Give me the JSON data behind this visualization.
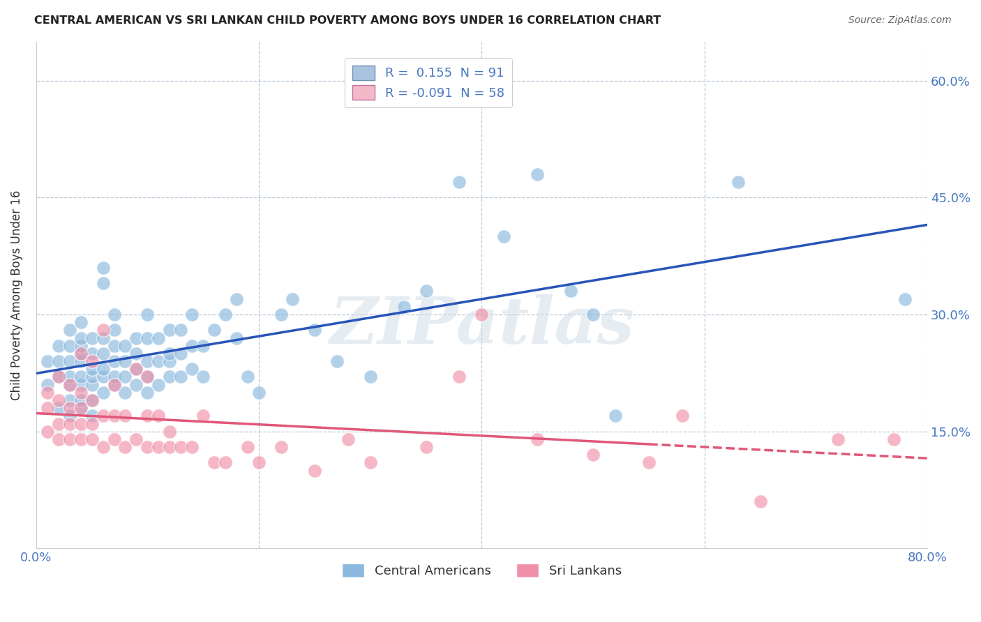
{
  "title": "CENTRAL AMERICAN VS SRI LANKAN CHILD POVERTY AMONG BOYS UNDER 16 CORRELATION CHART",
  "source": "Source: ZipAtlas.com",
  "ylabel": "Child Poverty Among Boys Under 16",
  "yticks": [
    "15.0%",
    "30.0%",
    "45.0%",
    "60.0%"
  ],
  "ytick_vals": [
    0.15,
    0.3,
    0.45,
    0.6
  ],
  "xmin": 0.0,
  "xmax": 0.8,
  "ymin": 0.0,
  "ymax": 0.65,
  "legend1_label": "R =  0.155  N = 91",
  "legend2_label": "R = -0.091  N = 58",
  "legend_box_color": "#aac4e0",
  "legend_pink_color": "#f4b8c8",
  "dot_color_blue": "#8ab8de",
  "dot_color_pink": "#f090a8",
  "line_color_blue": "#2855b8",
  "line_color_pink": "#e05878",
  "bottom_legend_blue": "Central Americans",
  "bottom_legend_pink": "Sri Lankans",
  "watermark": "ZIPatlas",
  "grid_color": "#b8c8d8",
  "background_color": "#ffffff",
  "title_color": "#222222",
  "axis_label_color": "#4878c0",
  "ca_x": [
    0.01,
    0.01,
    0.02,
    0.02,
    0.02,
    0.02,
    0.03,
    0.03,
    0.03,
    0.03,
    0.03,
    0.03,
    0.03,
    0.04,
    0.04,
    0.04,
    0.04,
    0.04,
    0.04,
    0.04,
    0.04,
    0.04,
    0.05,
    0.05,
    0.05,
    0.05,
    0.05,
    0.05,
    0.05,
    0.06,
    0.06,
    0.06,
    0.06,
    0.06,
    0.06,
    0.06,
    0.07,
    0.07,
    0.07,
    0.07,
    0.07,
    0.07,
    0.08,
    0.08,
    0.08,
    0.08,
    0.09,
    0.09,
    0.09,
    0.09,
    0.1,
    0.1,
    0.1,
    0.1,
    0.1,
    0.11,
    0.11,
    0.11,
    0.12,
    0.12,
    0.12,
    0.12,
    0.13,
    0.13,
    0.13,
    0.14,
    0.14,
    0.14,
    0.15,
    0.15,
    0.16,
    0.17,
    0.18,
    0.18,
    0.19,
    0.2,
    0.22,
    0.23,
    0.25,
    0.27,
    0.3,
    0.33,
    0.35,
    0.38,
    0.42,
    0.45,
    0.48,
    0.5,
    0.52,
    0.63,
    0.78
  ],
  "ca_y": [
    0.21,
    0.24,
    0.18,
    0.22,
    0.24,
    0.26,
    0.17,
    0.19,
    0.21,
    0.22,
    0.24,
    0.26,
    0.28,
    0.18,
    0.19,
    0.21,
    0.22,
    0.24,
    0.25,
    0.26,
    0.27,
    0.29,
    0.17,
    0.19,
    0.21,
    0.22,
    0.23,
    0.25,
    0.27,
    0.2,
    0.22,
    0.23,
    0.25,
    0.27,
    0.34,
    0.36,
    0.21,
    0.22,
    0.24,
    0.26,
    0.28,
    0.3,
    0.2,
    0.22,
    0.24,
    0.26,
    0.21,
    0.23,
    0.25,
    0.27,
    0.2,
    0.22,
    0.24,
    0.27,
    0.3,
    0.21,
    0.24,
    0.27,
    0.22,
    0.24,
    0.25,
    0.28,
    0.22,
    0.25,
    0.28,
    0.23,
    0.26,
    0.3,
    0.22,
    0.26,
    0.28,
    0.3,
    0.27,
    0.32,
    0.22,
    0.2,
    0.3,
    0.32,
    0.28,
    0.24,
    0.22,
    0.31,
    0.33,
    0.47,
    0.4,
    0.48,
    0.33,
    0.3,
    0.17,
    0.47,
    0.32
  ],
  "sl_x": [
    0.01,
    0.01,
    0.01,
    0.02,
    0.02,
    0.02,
    0.02,
    0.03,
    0.03,
    0.03,
    0.03,
    0.04,
    0.04,
    0.04,
    0.04,
    0.04,
    0.05,
    0.05,
    0.05,
    0.05,
    0.06,
    0.06,
    0.06,
    0.07,
    0.07,
    0.07,
    0.08,
    0.08,
    0.09,
    0.09,
    0.1,
    0.1,
    0.1,
    0.11,
    0.11,
    0.12,
    0.12,
    0.13,
    0.14,
    0.15,
    0.16,
    0.17,
    0.19,
    0.2,
    0.22,
    0.25,
    0.28,
    0.3,
    0.35,
    0.38,
    0.4,
    0.45,
    0.5,
    0.55,
    0.58,
    0.65,
    0.72,
    0.77
  ],
  "sl_y": [
    0.15,
    0.18,
    0.2,
    0.14,
    0.16,
    0.19,
    0.22,
    0.14,
    0.16,
    0.18,
    0.21,
    0.14,
    0.16,
    0.18,
    0.2,
    0.25,
    0.14,
    0.16,
    0.19,
    0.24,
    0.13,
    0.17,
    0.28,
    0.14,
    0.17,
    0.21,
    0.13,
    0.17,
    0.14,
    0.23,
    0.13,
    0.17,
    0.22,
    0.13,
    0.17,
    0.13,
    0.15,
    0.13,
    0.13,
    0.17,
    0.11,
    0.11,
    0.13,
    0.11,
    0.13,
    0.1,
    0.14,
    0.11,
    0.13,
    0.22,
    0.3,
    0.14,
    0.12,
    0.11,
    0.17,
    0.06,
    0.14,
    0.14
  ]
}
